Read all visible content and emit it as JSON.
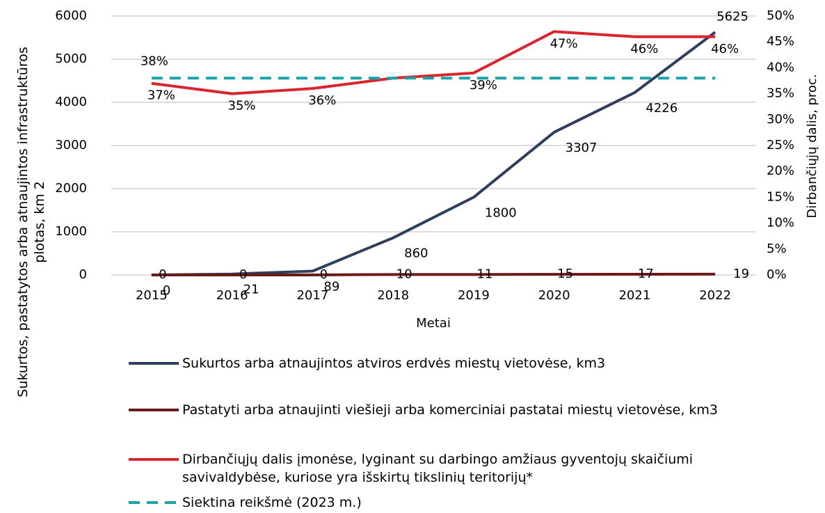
{
  "chart_data": {
    "type": "line",
    "categories": [
      "2015",
      "2016",
      "2017",
      "2018",
      "2019",
      "2020",
      "2021",
      "2022"
    ],
    "xlabel": "Metai",
    "ylabel": "Sukurtos, pastatytos arba atnaujintos infrastruktūros plotas, km 2",
    "y2label": "Dirbančiųjų dalis, proc.",
    "ylim": [
      0,
      6000
    ],
    "yticks": [
      0,
      1000,
      2000,
      3000,
      4000,
      5000,
      6000
    ],
    "y2lim": [
      0,
      50
    ],
    "y2ticks": [
      {
        "value": 0,
        "label": "0%"
      },
      {
        "value": 5,
        "label": "5%"
      },
      {
        "value": 10,
        "label": "10%"
      },
      {
        "value": 15,
        "label": "15%"
      },
      {
        "value": 20,
        "label": "20%"
      },
      {
        "value": 25,
        "label": "25%"
      },
      {
        "value": 30,
        "label": "30%"
      },
      {
        "value": 35,
        "label": "35%"
      },
      {
        "value": 40,
        "label": "40%"
      },
      {
        "value": 45,
        "label": "45%"
      },
      {
        "value": 50,
        "label": "50%"
      }
    ],
    "grid": true,
    "series": [
      {
        "name": "Sukurtos arba atnaujintos atviros erdvės miestų vietovėse, km3",
        "color": "#2e3f5c",
        "values": [
          0,
          21,
          89,
          860,
          1800,
          3307,
          4226,
          5625
        ]
      },
      {
        "name": "Pastatyti arba atnaujinti viešieji arba komerciniai pastatai miestų vietovėse, km3",
        "color": "#6b1a1a",
        "values": [
          0,
          0,
          0,
          10,
          11,
          15,
          17,
          19
        ]
      },
      {
        "name": "Dirbančiųjų dalis įmonėse, lyginant su darbingo amžiaus gyventojų skaičiumi savivaldybėse, kuriose yra išskirtų tikslinių teritorijų*",
        "color": "#d9262e",
        "axis": "y2",
        "values": [
          37,
          35,
          36,
          38,
          39,
          47,
          46,
          46
        ],
        "value_labels": [
          "37%",
          "35%",
          "36%",
          null,
          "39%",
          "47%",
          "46%",
          "46%"
        ]
      },
      {
        "name": "Siektina reikšmė (2023 m.)",
        "color": "#1aa3a8",
        "axis": "y2",
        "dashed": true,
        "values": [
          38,
          38,
          38,
          38,
          38,
          38,
          38,
          38
        ],
        "value_labels": [
          "38%",
          null,
          null,
          null,
          null,
          null,
          null,
          null
        ]
      }
    ]
  }
}
